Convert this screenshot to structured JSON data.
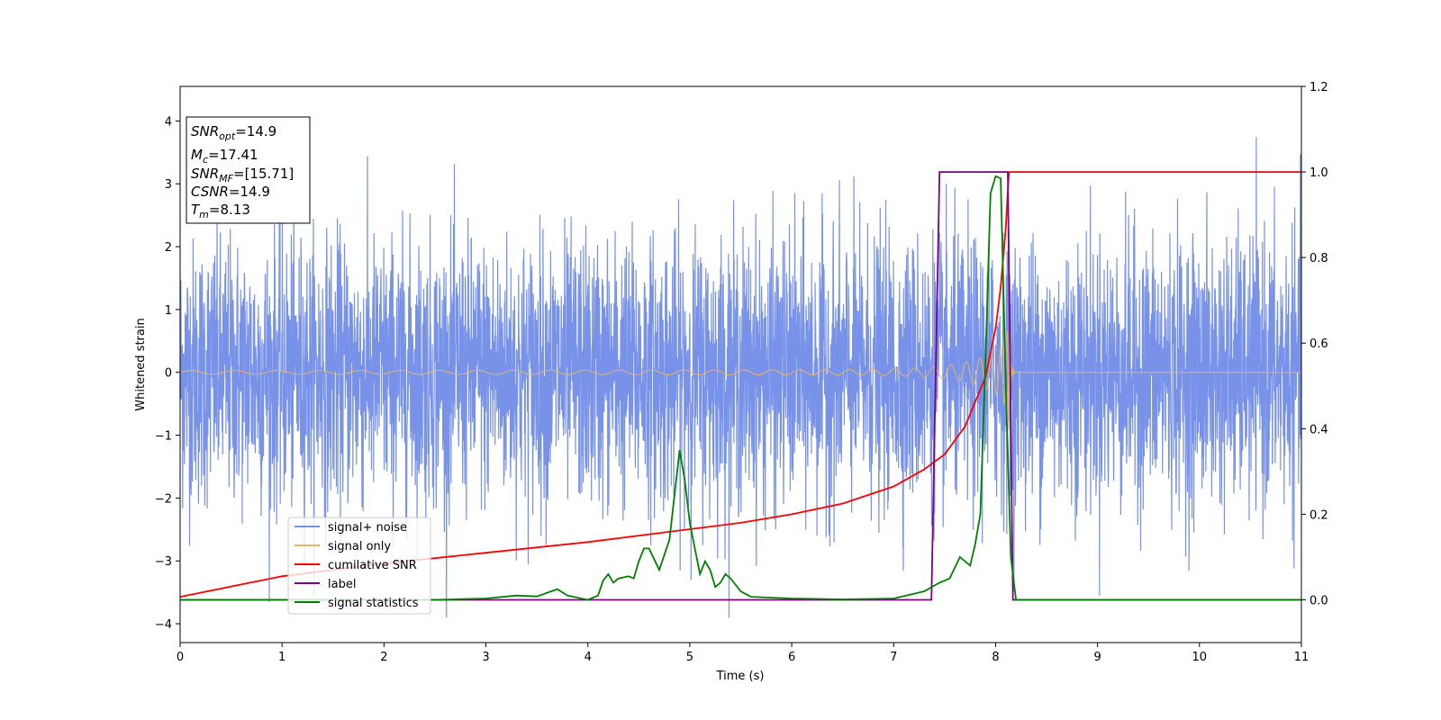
{
  "chart_data": {
    "type": "line",
    "xlabel": "Time (s)",
    "ylabel_left": "Whitened strain",
    "xlim": [
      0,
      11
    ],
    "ylim_left": [
      -4.3,
      4.55
    ],
    "ylim_right": [
      -0.1,
      1.2
    ],
    "x_ticks": [
      "0",
      "1",
      "2",
      "3",
      "4",
      "5",
      "6",
      "7",
      "8",
      "9",
      "10",
      "11"
    ],
    "y_left_ticks": [
      "−4",
      "−3",
      "−2",
      "−1",
      "0",
      "1",
      "2",
      "3",
      "4"
    ],
    "y_right_ticks": [
      "0.0",
      "0.2",
      "0.4",
      "0.6",
      "0.8",
      "1.0",
      "1.2"
    ],
    "grid": false,
    "legend_position": "lower-left",
    "annotation": {
      "lines": [
        {
          "name": "SNR",
          "sub": "opt",
          "value": "=14.9"
        },
        {
          "name": "M",
          "sub": "c",
          "value": "=17.41"
        },
        {
          "name": "SNR",
          "sub": "MF",
          "value": "=[15.71]"
        },
        {
          "name": "CSNR",
          "sub": "",
          "value": "=14.9"
        },
        {
          "name": "T",
          "sub": "m",
          "value": "=8.13"
        }
      ]
    },
    "series": [
      {
        "name": "signal+ noise",
        "axis": "left",
        "color": "#7792e8",
        "description_values": {
          "noise_band_typical": [
            -2.5,
            2.5
          ],
          "min": -3.9,
          "max": 3.85,
          "x_range": [
            0,
            11
          ]
        }
      },
      {
        "name": "signal only",
        "axis": "left",
        "color": "#e8b463",
        "chirp": {
          "start_amplitude": 0.03,
          "peak_amplitude": 0.92,
          "merger_time": 8.13,
          "end_amplitude": 0.0
        }
      },
      {
        "name": "cumilative SNR",
        "axis": "right",
        "color": "#ff0000",
        "x": [
          0,
          1,
          2,
          3,
          4,
          5,
          5.5,
          6,
          6.5,
          7,
          7.3,
          7.5,
          7.7,
          7.9,
          8.0,
          8.05,
          8.1,
          8.13,
          11
        ],
        "values": [
          0.007,
          0.055,
          0.085,
          0.11,
          0.135,
          0.165,
          0.18,
          0.2,
          0.225,
          0.265,
          0.305,
          0.34,
          0.405,
          0.52,
          0.635,
          0.73,
          0.87,
          1.0,
          1.0
        ]
      },
      {
        "name": "label",
        "axis": "right",
        "color": "#800080",
        "x": [
          0,
          7.37,
          7.45,
          8.12,
          8.17,
          11
        ],
        "values": [
          0.0,
          0.0,
          1.0,
          1.0,
          0.0,
          0.0
        ]
      },
      {
        "name": "signal statistics",
        "axis": "right",
        "color": "#008000",
        "x": [
          0,
          2.5,
          3.0,
          3.3,
          3.5,
          3.7,
          3.8,
          4.0,
          4.1,
          4.15,
          4.2,
          4.25,
          4.3,
          4.4,
          4.45,
          4.5,
          4.55,
          4.6,
          4.7,
          4.8,
          4.9,
          4.95,
          5.0,
          5.1,
          5.15,
          5.2,
          5.25,
          5.3,
          5.35,
          5.4,
          5.5,
          5.6,
          6.0,
          6.5,
          7.0,
          7.3,
          7.45,
          7.55,
          7.65,
          7.75,
          7.8,
          7.85,
          7.9,
          7.95,
          8.0,
          8.05,
          8.1,
          8.15,
          8.2,
          11
        ],
        "values": [
          0.0,
          0.0,
          0.003,
          0.01,
          0.008,
          0.025,
          0.01,
          0.0,
          0.01,
          0.045,
          0.06,
          0.04,
          0.05,
          0.055,
          0.05,
          0.09,
          0.12,
          0.12,
          0.07,
          0.14,
          0.35,
          0.28,
          0.18,
          0.06,
          0.09,
          0.07,
          0.03,
          0.04,
          0.06,
          0.05,
          0.02,
          0.007,
          0.003,
          0.001,
          0.003,
          0.02,
          0.04,
          0.05,
          0.1,
          0.08,
          0.13,
          0.2,
          0.55,
          0.95,
          0.99,
          0.985,
          0.5,
          0.1,
          0.0,
          0.0
        ]
      }
    ]
  }
}
